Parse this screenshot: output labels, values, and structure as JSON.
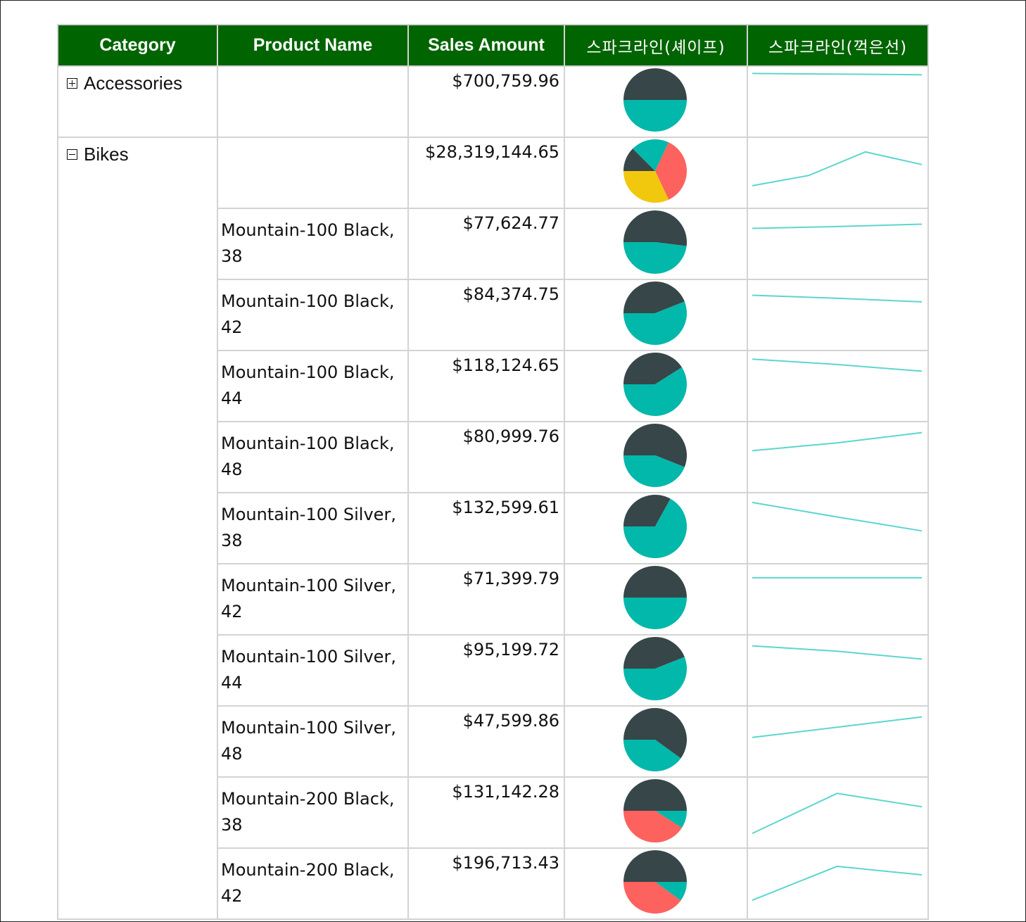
{
  "headers": {
    "category": "Category",
    "product_name": "Product Name",
    "sales_amount": "Sales Amount",
    "sparkline_shape": "스파크라인(셰이프)",
    "sparkline_line": "스파크라인(꺽은선)"
  },
  "colors": {
    "header_bg": "#006400",
    "pie_dark": "#374649",
    "pie_teal": "#01B8AA",
    "pie_red": "#FD625E",
    "pie_yellow": "#F2C80F",
    "line": "#5DD6CD"
  },
  "rows": [
    {
      "category": "Accessories",
      "expand_state": "collapsed",
      "product": "",
      "amount": "$700,759.96",
      "pie": [
        0.5,
        0.5,
        0,
        0
      ],
      "line": [
        0.96,
        0.95,
        0.94
      ]
    },
    {
      "category": "Bikes",
      "expand_state": "expanded",
      "product": "",
      "amount": "$28,319,144.65",
      "pie": [
        0.125,
        0.195,
        0.36,
        0.32
      ],
      "line": [
        0.28,
        0.45,
        0.84,
        0.63
      ]
    },
    {
      "category": "",
      "product": "Mountain-100 Black, 38",
      "amount": "$77,624.77",
      "pie": [
        0.52,
        0.48,
        0,
        0
      ],
      "line": [
        0.75,
        0.78,
        0.82
      ]
    },
    {
      "category": "",
      "product": "Mountain-100 Black, 42",
      "amount": "$84,374.75",
      "pie": [
        0.44,
        0.56,
        0,
        0
      ],
      "line": [
        0.82,
        0.77,
        0.71
      ]
    },
    {
      "category": "",
      "product": "Mountain-100 Black, 44",
      "amount": "$118,124.65",
      "pie": [
        0.41,
        0.59,
        0,
        0
      ],
      "line": [
        0.94,
        0.85,
        0.74
      ]
    },
    {
      "category": "",
      "product": "Mountain-100 Black, 48",
      "amount": "$80,999.76",
      "pie": [
        0.56,
        0.44,
        0,
        0
      ],
      "line": [
        0.6,
        0.73,
        0.9
      ]
    },
    {
      "category": "",
      "product": "Mountain-100 Silver, 38",
      "amount": "$132,599.61",
      "pie": [
        0.33,
        0.67,
        0,
        0
      ],
      "line": [
        0.92,
        0.68,
        0.45
      ]
    },
    {
      "category": "",
      "product": "Mountain-100 Silver, 42",
      "amount": "$71,399.79",
      "pie": [
        0.5,
        0.5,
        0,
        0
      ],
      "line": [
        0.85,
        0.85,
        0.85
      ]
    },
    {
      "category": "",
      "product": "Mountain-100 Silver, 44",
      "amount": "$95,199.72",
      "pie": [
        0.44,
        0.56,
        0,
        0
      ],
      "line": [
        0.9,
        0.81,
        0.68
      ]
    },
    {
      "category": "",
      "product": "Mountain-100 Silver, 48",
      "amount": "$47,599.86",
      "pie": [
        0.6,
        0.4,
        0,
        0
      ],
      "line": [
        0.56,
        0.73,
        0.9
      ]
    },
    {
      "category": "",
      "product": "Mountain-200 Black, 38",
      "amount": "$131,142.28",
      "pie": [
        0.5,
        0.09,
        0.41,
        0
      ],
      "line": [
        0.15,
        0.81,
        0.59
      ]
    },
    {
      "category": "",
      "product": "Mountain-200 Black, 42",
      "amount": "$196,713.43",
      "pie": [
        0.5,
        0.1,
        0.4,
        0
      ],
      "line": [
        0.22,
        0.78,
        0.64
      ]
    }
  ]
}
